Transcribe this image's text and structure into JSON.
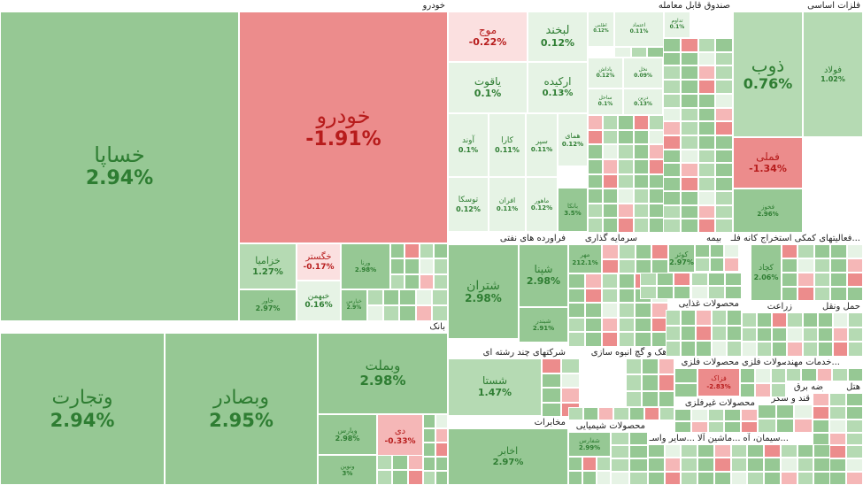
{
  "chart_data": {
    "type": "treemap",
    "colors": {
      "pos_strong": "#96c894",
      "pos_mid": "#b5dab3",
      "pos_light": "#e6f3e5",
      "neg_strong": "#ec8c8c",
      "neg_mid": "#f5b7b7",
      "neg_light": "#fbe0e0",
      "pos_text": "#2e7d32",
      "neg_text": "#b71c1c"
    },
    "sectors": [
      {
        "name": "خودرو",
        "stocks": [
          {
            "symbol": "خساپا",
            "change": "2.94%",
            "value": 2.94
          },
          {
            "symbol": "خودرو",
            "change": "-1.91%",
            "value": -1.91
          },
          {
            "symbol": "خزامیا",
            "change": "1.27%",
            "value": 1.27
          },
          {
            "symbol": "خگستر",
            "change": "-0.17%",
            "value": -0.17
          },
          {
            "symbol": "خاور",
            "change": "2.97%",
            "value": 2.97
          },
          {
            "symbol": "خبهمن",
            "change": "0.16%",
            "value": 0.16
          },
          {
            "symbol": "ورنا",
            "change": "2.98%",
            "value": 2.98
          },
          {
            "symbol": "خپارس",
            "change": "2.9%",
            "value": 2.9
          }
        ]
      },
      {
        "name": "بانک",
        "stocks": [
          {
            "symbol": "وتجارت",
            "change": "2.94%",
            "value": 2.94
          },
          {
            "symbol": "وبصادر",
            "change": "2.95%",
            "value": 2.95
          },
          {
            "symbol": "وبملت",
            "change": "2.98%",
            "value": 2.98
          },
          {
            "symbol": "وپارس",
            "change": "2.98%",
            "value": 2.98
          },
          {
            "symbol": "دی",
            "change": "-0.33%",
            "value": -0.33
          },
          {
            "symbol": "ونوین",
            "change": "3%",
            "value": 3
          }
        ]
      },
      {
        "name": "صندوق قابل معامله",
        "stocks": [
          {
            "symbol": "موج",
            "change": "-0.22%",
            "value": -0.22
          },
          {
            "symbol": "لبخند",
            "change": "0.12%",
            "value": 0.12
          },
          {
            "symbol": "یاقوت",
            "change": "0.1%",
            "value": 0.1
          },
          {
            "symbol": "ارکیده",
            "change": "0.13%",
            "value": 0.13
          },
          {
            "symbol": "آوند",
            "change": "0.1%",
            "value": 0.1
          },
          {
            "symbol": "کارا",
            "change": "0.11%",
            "value": 0.11
          },
          {
            "symbol": "سپر",
            "change": "0.11%",
            "value": 0.11
          },
          {
            "symbol": "همای",
            "change": "0.12%",
            "value": 0.12
          },
          {
            "symbol": "توسکا",
            "change": "0.12%",
            "value": 0.12
          },
          {
            "symbol": "افران",
            "change": "0.11%",
            "value": 0.11
          },
          {
            "symbol": "ماهور",
            "change": "0.12%",
            "value": 0.12
          },
          {
            "symbol": "بانکا",
            "change": "3.5%",
            "value": 3.5
          },
          {
            "symbol": "اطلس",
            "change": "0.12%",
            "value": 0.12
          },
          {
            "symbol": "تداوم",
            "change": "0.1%",
            "value": 0.1
          },
          {
            "symbol": "اعتماد",
            "change": "0.11%",
            "value": 0.11
          },
          {
            "symbol": "پاداش",
            "change": "0.12%",
            "value": 0.12
          },
          {
            "symbol": "نخل",
            "change": "0.09%",
            "value": 0.09
          },
          {
            "symbol": "ساحل",
            "change": "0.1%",
            "value": 0.1
          },
          {
            "symbol": "درین",
            "change": "0.13%",
            "value": 0.13
          }
        ]
      },
      {
        "name": "فلزات اساسی",
        "stocks": [
          {
            "symbol": "ذوب",
            "change": "0.76%",
            "value": 0.76
          },
          {
            "symbol": "فولاد",
            "change": "1.02%",
            "value": 1.02
          },
          {
            "symbol": "فملی",
            "change": "-1.34%",
            "value": -1.34
          },
          {
            "symbol": "فخوز",
            "change": "2.96%",
            "value": 2.96
          }
        ]
      },
      {
        "name": "فراورده های نفتی",
        "stocks": [
          {
            "symbol": "شتران",
            "change": "2.98%",
            "value": 2.98
          },
          {
            "symbol": "شپنا",
            "change": "2.98%",
            "value": 2.98
          },
          {
            "symbol": "شبندر",
            "change": "2.91%",
            "value": 2.91
          }
        ]
      },
      {
        "name": "سرمایه گذاری",
        "stocks": [
          {
            "symbol": "مهر",
            "change": "212.1%",
            "value": 212.1
          }
        ]
      },
      {
        "name": "بیمه",
        "stocks": [
          {
            "symbol": "کوثر",
            "change": "2.97%",
            "value": 2.97
          }
        ]
      },
      {
        "name": "فعالیتهای کمکی استخراج کانه فلـ...",
        "stocks": [
          {
            "symbol": "کچاد",
            "change": "2.06%",
            "value": 2.06
          }
        ]
      },
      {
        "name": "زراعت",
        "stocks": []
      },
      {
        "name": "حمل ونقل",
        "stocks": []
      },
      {
        "name": "محصولات غذایی",
        "stocks": []
      },
      {
        "name": "شرکتهای چند رشته ای",
        "stocks": [
          {
            "symbol": "شستا",
            "change": "1.47%",
            "value": 1.47
          }
        ]
      },
      {
        "name": "انبوه سازی",
        "stocks": []
      },
      {
        "name": "سیمان، آهک و گچ",
        "stocks": [
          {
            "symbol": "کرمان",
            "change": "2.99%",
            "value": 2.99
          }
        ]
      },
      {
        "name": "محصولات فلزی",
        "stocks": [
          {
            "symbol": "فزاک",
            "change": "-2.83%",
            "value": -2.83
          }
        ]
      },
      {
        "name": "محصولات فلزی",
        "stocks": []
      },
      {
        "name": "خدمات مهند...",
        "stocks": []
      },
      {
        "name": "محصولات غیرفلزی",
        "stocks": []
      },
      {
        "name": "قند و شکر",
        "stocks": []
      },
      {
        "name": "مخابرات",
        "stocks": [
          {
            "symbol": "اخابر",
            "change": "2.97%",
            "value": 2.97
          }
        ]
      },
      {
        "name": "محصولات شیمیایی",
        "stocks": [
          {
            "symbol": "شفارس",
            "change": "2.99%",
            "value": 2.99
          }
        ]
      },
      {
        "name": "سیمان، آه...",
        "stocks": []
      },
      {
        "name": "ماشین آلا...",
        "stocks": []
      },
      {
        "name": "سایر واسـ...",
        "stocks": []
      },
      {
        "name": "عرضه برق...",
        "stocks": []
      },
      {
        "name": "هتل",
        "stocks": []
      }
    ]
  }
}
